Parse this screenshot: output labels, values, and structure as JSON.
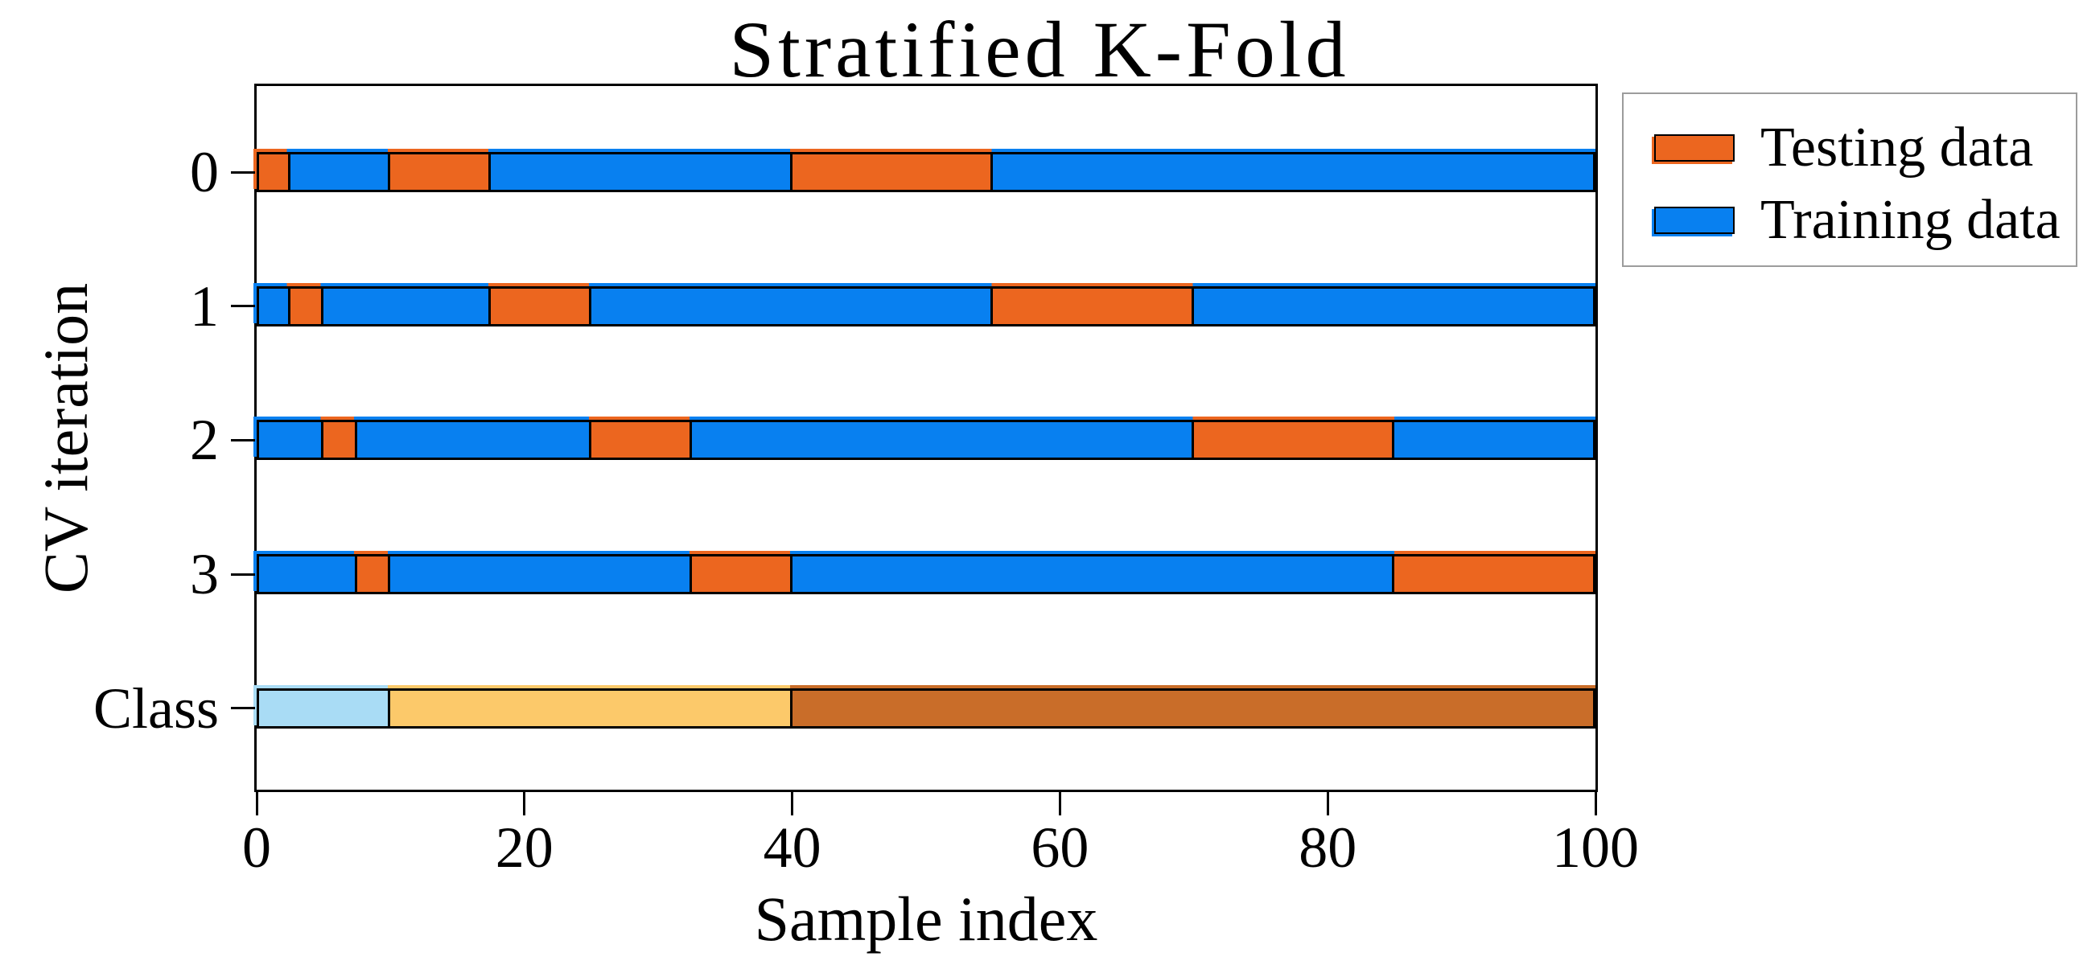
{
  "title": "Stratified K-Fold",
  "colors": {
    "test": "#ec661f",
    "train": "#0880f0",
    "class0": "#a9dcf5",
    "class1": "#fcc96a",
    "class2": "#c96d29",
    "axis": "#000000",
    "legend_border": "#9c9c9c",
    "background": "#ffffff"
  },
  "chart_data": {
    "type": "bar",
    "orientation": "horizontal",
    "title": "Stratified K-Fold",
    "xlabel": "Sample index",
    "ylabel": "CV iteration",
    "xlim": [
      0,
      100
    ],
    "x_ticks": [
      "0",
      "20",
      "40",
      "60",
      "80",
      "100"
    ],
    "grid": false,
    "legend_position": "outside-upper-right",
    "legend_entries": [
      {
        "label": "Testing data",
        "role": "test"
      },
      {
        "label": "Training data",
        "role": "train"
      }
    ],
    "rows": [
      {
        "label": "0",
        "segments": [
          {
            "from": 0,
            "to": 2.5,
            "role": "test"
          },
          {
            "from": 2.5,
            "to": 10,
            "role": "train"
          },
          {
            "from": 10,
            "to": 17.5,
            "role": "test"
          },
          {
            "from": 17.5,
            "to": 40,
            "role": "train"
          },
          {
            "from": 40,
            "to": 55,
            "role": "test"
          },
          {
            "from": 55,
            "to": 100,
            "role": "train"
          }
        ]
      },
      {
        "label": "1",
        "segments": [
          {
            "from": 0,
            "to": 2.5,
            "role": "train"
          },
          {
            "from": 2.5,
            "to": 5,
            "role": "test"
          },
          {
            "from": 5,
            "to": 17.5,
            "role": "train"
          },
          {
            "from": 17.5,
            "to": 25,
            "role": "test"
          },
          {
            "from": 25,
            "to": 55,
            "role": "train"
          },
          {
            "from": 55,
            "to": 70,
            "role": "test"
          },
          {
            "from": 70,
            "to": 100,
            "role": "train"
          }
        ]
      },
      {
        "label": "2",
        "segments": [
          {
            "from": 0,
            "to": 5,
            "role": "train"
          },
          {
            "from": 5,
            "to": 7.5,
            "role": "test"
          },
          {
            "from": 7.5,
            "to": 25,
            "role": "train"
          },
          {
            "from": 25,
            "to": 32.5,
            "role": "test"
          },
          {
            "from": 32.5,
            "to": 70,
            "role": "train"
          },
          {
            "from": 70,
            "to": 85,
            "role": "test"
          },
          {
            "from": 85,
            "to": 100,
            "role": "train"
          }
        ]
      },
      {
        "label": "3",
        "segments": [
          {
            "from": 0,
            "to": 7.5,
            "role": "train"
          },
          {
            "from": 7.5,
            "to": 10,
            "role": "test"
          },
          {
            "from": 10,
            "to": 32.5,
            "role": "train"
          },
          {
            "from": 32.5,
            "to": 40,
            "role": "test"
          },
          {
            "from": 40,
            "to": 85,
            "role": "train"
          },
          {
            "from": 85,
            "to": 100,
            "role": "test"
          }
        ]
      },
      {
        "label": "Class",
        "segments": [
          {
            "from": 0,
            "to": 10,
            "role": "class0"
          },
          {
            "from": 10,
            "to": 40,
            "role": "class1"
          },
          {
            "from": 40,
            "to": 100,
            "role": "class2"
          }
        ]
      }
    ]
  }
}
